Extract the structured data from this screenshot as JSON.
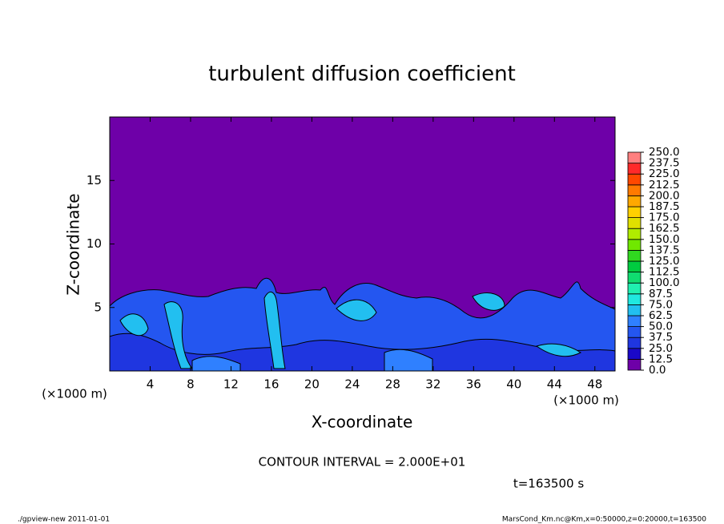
{
  "chart_data": {
    "type": "contour",
    "title": "turbulent diffusion coefficient",
    "x_label": "X-coordinate",
    "y_label": "Z-coordinate",
    "x_unit": "(×1000 m)",
    "y_unit": "(×1000 m)",
    "xlim": [
      0,
      50
    ],
    "ylim": [
      0,
      20
    ],
    "xticks": [
      4,
      8,
      12,
      16,
      20,
      24,
      28,
      32,
      36,
      40,
      44,
      48
    ],
    "yticks": [
      5,
      10,
      15
    ],
    "colorbar": {
      "levels": [
        {
          "value": 0,
          "label": "0.0"
        },
        12.5,
        {
          "value": 25,
          "label": "25.0"
        },
        37.5,
        {
          "value": 50,
          "label": "50.0"
        },
        62.5,
        {
          "value": 75,
          "label": "75.0"
        },
        87.5,
        {
          "value": 100,
          "label": "100.0"
        },
        112.5,
        {
          "value": 125,
          "label": "125.0"
        },
        137.5,
        {
          "value": 150,
          "label": "150.0"
        },
        162.5,
        {
          "value": 175,
          "label": "175.0"
        },
        187.5,
        {
          "value": 200,
          "label": "200.0"
        },
        212.5,
        {
          "value": 225,
          "label": "225.0"
        },
        237.5,
        {
          "value": 250,
          "label": "250.0"
        }
      ],
      "colors": [
        "#6e00a8",
        "#1a08c8",
        "#1f36e0",
        "#2456f0",
        "#2f80ff",
        "#22bff0",
        "#20e8e0",
        "#20f0b0",
        "#10dc70",
        "#00cc40",
        "#30d820",
        "#70e800",
        "#b0ec00",
        "#e0e000",
        "#ffd000",
        "#ffa800",
        "#ff7a00",
        "#ff4800",
        "#ff2a2a",
        "#ff8080"
      ]
    },
    "contour_interval": "CONTOUR INTERVAL = 2.000E+01",
    "time_label": "t=163500 s",
    "footer_left": "./gpview-new   2011-01-01",
    "footer_right": "MarsCond_Km.nc@Km,x=0:50000,z=0:20000,t=163500"
  }
}
